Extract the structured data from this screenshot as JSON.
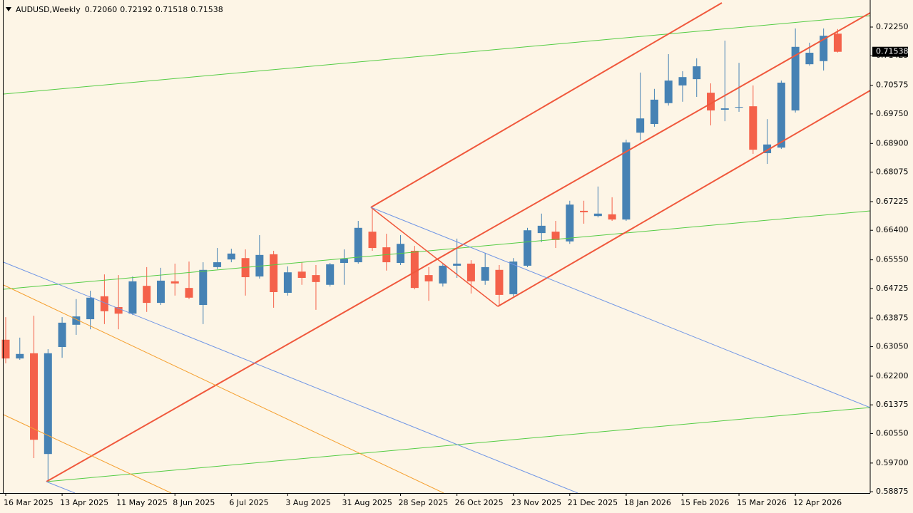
{
  "header": {
    "symbol": "AUDUSD,Weekly",
    "ohlc": [
      "0.72060",
      "0.72192",
      "0.71518",
      "0.71538"
    ]
  },
  "chart_data": {
    "type": "candlestick",
    "categories": [
      "16 Mar 2025",
      null,
      null,
      null,
      "13 Apr 2025",
      null,
      null,
      null,
      "11 May 2025",
      null,
      null,
      null,
      "8 Jun 2025",
      null,
      null,
      null,
      "6 Jul 2025",
      null,
      null,
      null,
      "3 Aug 2025",
      null,
      null,
      null,
      "31 Aug 2025",
      null,
      null,
      null,
      "28 Sep 2025",
      null,
      null,
      null,
      "26 Oct 2025",
      null,
      null,
      null,
      "23 Nov 2025",
      null,
      null,
      null,
      "21 Dec 2025",
      null,
      null,
      null,
      "18 Jan 2026",
      null,
      null,
      null,
      "15 Feb 2026",
      null,
      null,
      null,
      "15 Mar 2026",
      null,
      null,
      null,
      "12 Apr 2026",
      null,
      null,
      null
    ],
    "open": [
      0.6325,
      0.6271,
      0.6286,
      0.5996,
      0.6304,
      0.6368,
      0.6384,
      0.645,
      0.6419,
      0.64,
      0.648,
      0.6431,
      0.6493,
      0.6474,
      0.6425,
      0.6534,
      0.6556,
      0.656,
      0.6507,
      0.6571,
      0.646,
      0.6521,
      0.6511,
      0.6483,
      0.6546,
      0.6548,
      0.6636,
      0.6591,
      0.6546,
      0.6581,
      0.6511,
      0.6487,
      0.6538,
      0.6544,
      0.6495,
      0.6526,
      0.6456,
      0.6538,
      0.6632,
      0.6636,
      0.6608,
      0.6696,
      0.6681,
      0.6686,
      0.6671,
      0.6921,
      0.6946,
      0.7006,
      0.7057,
      0.7075,
      0.7036,
      0.6987,
      0.6993,
      0.6997,
      0.6862,
      0.6878,
      0.6985,
      0.7118,
      0.7127,
      0.7206
    ],
    "high": [
      0.639,
      0.6331,
      0.6394,
      0.6298,
      0.639,
      0.6442,
      0.6466,
      0.6513,
      0.6511,
      0.6507,
      0.6534,
      0.6532,
      0.6544,
      0.655,
      0.6548,
      0.6589,
      0.6587,
      0.6585,
      0.6626,
      0.6581,
      0.6536,
      0.6548,
      0.654,
      0.6546,
      0.6585,
      0.6667,
      0.6706,
      0.663,
      0.6626,
      0.6595,
      0.6534,
      0.6544,
      0.6616,
      0.6554,
      0.6575,
      0.654,
      0.656,
      0.6647,
      0.6688,
      0.6667,
      0.6725,
      0.6725,
      0.6766,
      0.6735,
      0.6901,
      0.7094,
      0.7047,
      0.7147,
      0.7098,
      0.7135,
      0.7063,
      0.7186,
      0.7122,
      0.7057,
      0.696,
      0.7071,
      0.7221,
      0.718,
      0.7221,
      0.72192
    ],
    "low": [
      0.6257,
      0.6267,
      0.5984,
      0.5914,
      0.6273,
      0.6339,
      0.6355,
      0.637,
      0.6355,
      0.6396,
      0.6405,
      0.6425,
      0.6452,
      0.6442,
      0.637,
      0.6528,
      0.6548,
      0.6452,
      0.6501,
      0.6417,
      0.6452,
      0.6483,
      0.6411,
      0.6478,
      0.6483,
      0.6544,
      0.6581,
      0.6524,
      0.654,
      0.647,
      0.6437,
      0.6478,
      0.6503,
      0.6458,
      0.6483,
      0.6425,
      0.645,
      0.6534,
      0.6606,
      0.6589,
      0.6601,
      0.6659,
      0.6677,
      0.6667,
      0.6667,
      0.6899,
      0.6938,
      0.6999,
      0.701,
      0.7024,
      0.6942,
      0.6954,
      0.6981,
      0.686,
      0.6831,
      0.6874,
      0.6979,
      0.7114,
      0.71,
      0.71518
    ],
    "close": [
      0.6271,
      0.6284,
      0.6037,
      0.6286,
      0.6374,
      0.6392,
      0.6446,
      0.6407,
      0.64,
      0.6493,
      0.6431,
      0.6495,
      0.6487,
      0.6446,
      0.6526,
      0.6548,
      0.6573,
      0.6505,
      0.6569,
      0.6462,
      0.6519,
      0.6503,
      0.6491,
      0.6542,
      0.6558,
      0.6647,
      0.6589,
      0.6548,
      0.6601,
      0.6474,
      0.6493,
      0.6538,
      0.6544,
      0.6493,
      0.6534,
      0.6454,
      0.655,
      0.664,
      0.6653,
      0.6612,
      0.6714,
      0.6692,
      0.6688,
      0.6671,
      0.6893,
      0.6962,
      0.7016,
      0.7071,
      0.7081,
      0.7112,
      0.6985,
      0.6991,
      0.6995,
      0.6872,
      0.6887,
      0.7065,
      0.7168,
      0.7151,
      0.72,
      0.71538
    ],
    "up_color": "#4682b4",
    "down_color": "#f4614a",
    "ylim": [
      0.58836,
      0.73029
    ],
    "yticks": [
      {
        "value": 0.7225,
        "label": "0.72250"
      },
      {
        "value": 0.71425,
        "label": "0.71425"
      },
      {
        "value": 0.70575,
        "label": "0.70575"
      },
      {
        "value": 0.6975,
        "label": "0.69750"
      },
      {
        "value": 0.689,
        "label": "0.68900"
      },
      {
        "value": 0.68075,
        "label": "0.68075"
      },
      {
        "value": 0.67225,
        "label": "0.67225"
      },
      {
        "value": 0.664,
        "label": "0.66400"
      },
      {
        "value": 0.6555,
        "label": "0.65550"
      },
      {
        "value": 0.64725,
        "label": "0.64725"
      },
      {
        "value": 0.63875,
        "label": "0.63875"
      },
      {
        "value": 0.6305,
        "label": "0.63050"
      },
      {
        "value": 0.622,
        "label": "0.62200"
      },
      {
        "value": 0.61375,
        "label": "0.61375"
      },
      {
        "value": 0.6055,
        "label": "0.60550"
      },
      {
        "value": 0.597,
        "label": "0.59700"
      },
      {
        "value": 0.58875,
        "label": "0.58875"
      }
    ],
    "last_price": {
      "value": 0.71538,
      "label": "0.71538"
    }
  }
}
